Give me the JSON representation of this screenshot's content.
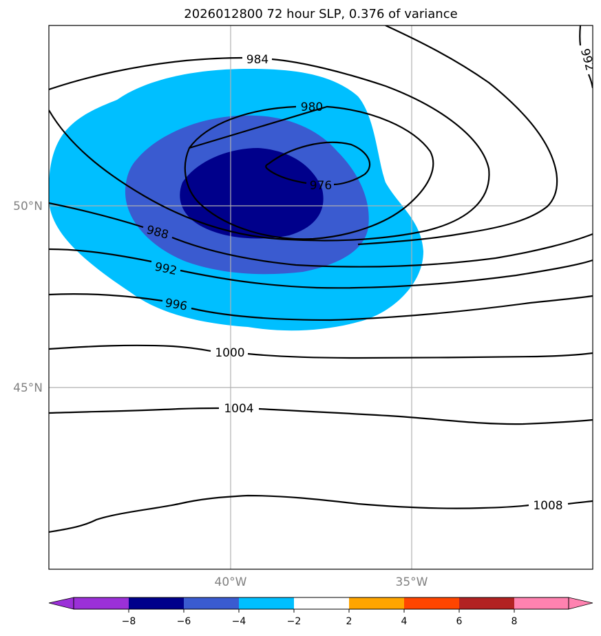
{
  "title": "2026012800 72 hour SLP, 0.376 of variance",
  "map": {
    "lat_ticks": [
      {
        "value": 50,
        "label": "50°N"
      },
      {
        "value": 45,
        "label": "45°N"
      }
    ],
    "lon_ticks": [
      {
        "value": -40,
        "label": "40°W"
      },
      {
        "value": -35,
        "label": "35°W"
      }
    ],
    "gridline_color": "#b0b0b0",
    "contour_labels": [
      "984",
      "980",
      "976",
      "988",
      "992",
      "996",
      "1000",
      "1004",
      "1008",
      "992"
    ],
    "anomaly_fill_levels": [
      {
        "range": [
          -4,
          -2
        ],
        "color": "#00bfff"
      },
      {
        "range": [
          -6,
          -4
        ],
        "color": "#3a5bd0"
      },
      {
        "range": [
          -8,
          -6
        ],
        "color": "#00008b"
      }
    ]
  },
  "colorbar": {
    "ticks": [
      "−8",
      "−6",
      "−4",
      "−2",
      "2",
      "4",
      "6",
      "8"
    ],
    "colors": [
      "#9b30d8",
      "#00008b",
      "#3a5bd0",
      "#00bfff",
      "#ffffff",
      "#ffa500",
      "#ff4500",
      "#b22222",
      "#ff82b0"
    ]
  }
}
